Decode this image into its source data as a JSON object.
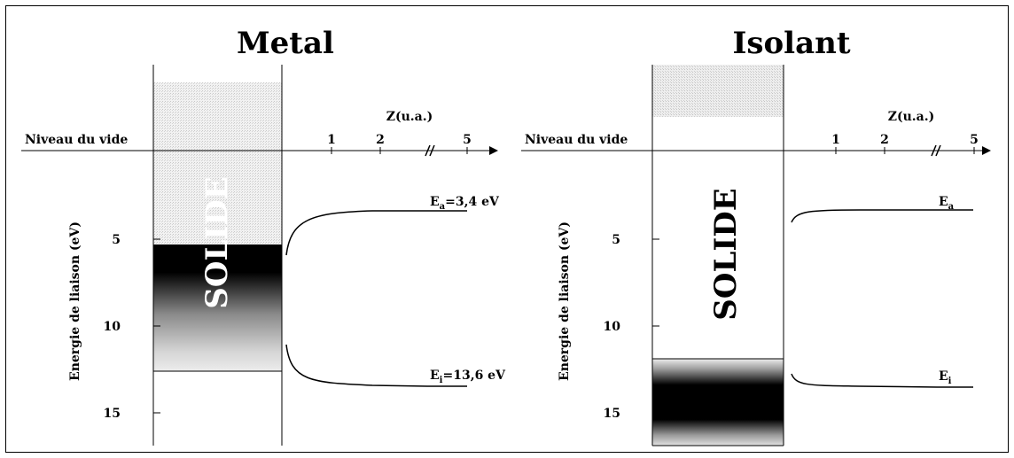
{
  "panels": {
    "metal": {
      "title": "Metal",
      "vacuum_label": "Niveau du vide",
      "z_axis_label": "Z(u.a.)",
      "z_ticks": [
        "1",
        "2",
        "5"
      ],
      "y_axis_label": "Energie de liaison (eV)",
      "y_ticks": [
        "5",
        "10",
        "15"
      ],
      "solid_label": "SOLIDE",
      "level_a": {
        "sym": "E",
        "sub": "a",
        "value": "=3,4 eV"
      },
      "level_i": {
        "sym": "E",
        "sub": "i",
        "value": "=13,6 eV"
      }
    },
    "isolant": {
      "title": "Isolant",
      "vacuum_label": "Niveau du vide",
      "z_axis_label": "Z(u.a.)",
      "z_ticks": [
        "1",
        "2",
        "5"
      ],
      "y_axis_label": "Energie de liaison (eV)",
      "y_ticks": [
        "5",
        "10",
        "15"
      ],
      "solid_label": "SOLIDE",
      "level_a": {
        "sym": "E",
        "sub": "a",
        "value": ""
      },
      "level_i": {
        "sym": "E",
        "sub": "i",
        "value": ""
      }
    }
  },
  "colors": {
    "ink": "#000000",
    "band_light": "#e4e4e4",
    "band_dark": "#000000"
  }
}
